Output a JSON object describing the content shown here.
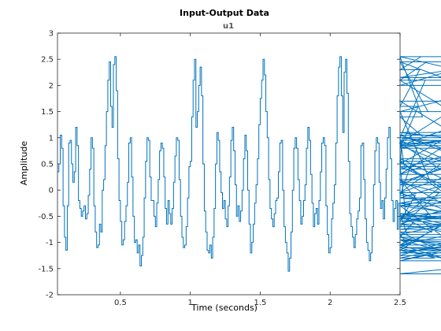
{
  "chart_data": {
    "type": "line",
    "style": "stairs",
    "title": "Input-Output Data",
    "subtitle": "u1",
    "xlabel": "Time (seconds)",
    "ylabel": "Amplitude",
    "xlim": [
      0.05,
      2.5
    ],
    "ylim": [
      -2,
      3
    ],
    "xticks": [
      "0.5",
      "1",
      "1.5",
      "2",
      "2.5"
    ],
    "yticks": [
      "-2",
      "-1.5",
      "-1",
      "-0.5",
      "0",
      "0.5",
      "1",
      "1.5",
      "2",
      "2.5",
      "3"
    ],
    "grid": false,
    "series": [
      {
        "color": "#0072BD",
        "t0": 0.05,
        "dt": 0.01,
        "values": [
          0.35,
          0.5,
          1.05,
          0.8,
          -0.3,
          -0.9,
          -1.15,
          -0.3,
          0.9,
          0.95,
          0.5,
          0.15,
          0.35,
          1.2,
          0.85,
          -0.2,
          -0.35,
          -0.5,
          -0.4,
          -0.3,
          -0.55,
          -0.45,
          -0.1,
          0.4,
          1.0,
          0.8,
          -0.3,
          -0.8,
          -1.1,
          -1.05,
          -0.65,
          -0.8,
          0.0,
          0.2,
          0.85,
          1.5,
          2.1,
          2.45,
          1.6,
          1.2,
          2.4,
          2.55,
          1.9,
          0.6,
          -0.2,
          -0.6,
          -1.05,
          -0.95,
          -0.6,
          -0.3,
          0.15,
          0.9,
          1.0,
          0.25,
          -0.5,
          -1.0,
          -0.95,
          -1.2,
          -1.05,
          -1.45,
          -1.25,
          -0.9,
          -0.15,
          0.55,
          1.0,
          0.95,
          0.25,
          -0.2,
          -0.2,
          -0.5,
          -0.7,
          -0.25,
          0.2,
          0.75,
          0.9,
          0.8,
          0.25,
          -0.35,
          -0.65,
          -0.2,
          -0.45,
          -0.65,
          -0.35,
          0.15,
          0.65,
          1.0,
          0.95,
          0.2,
          -0.5,
          -0.9,
          -1.1,
          -1.05,
          -0.7,
          -0.15,
          0.45,
          0.55,
          1.4,
          2.1,
          2.5,
          1.2,
          1.5,
          2.0,
          2.35,
          1.8,
          0.5,
          -0.4,
          -0.8,
          -1.15,
          -1.2,
          -1.05,
          -1.3,
          -0.9,
          -0.35,
          0.5,
          1.1,
          0.95,
          0.35,
          -0.05,
          -0.35,
          -0.2,
          -0.55,
          -0.7,
          -0.3,
          0.25,
          0.95,
          1.2,
          0.75,
          0.1,
          -0.5,
          -0.3,
          -0.6,
          -0.4,
          0.0,
          0.6,
          1.05,
          0.75,
          0.0,
          -0.65,
          -1.2,
          -1.0,
          -0.65,
          -0.25,
          0.1,
          0.6,
          1.25,
          1.75,
          2.1,
          2.5,
          2.2,
          1.5,
          1.0,
          0.2,
          -0.35,
          -0.55,
          -0.7,
          -0.45,
          -0.2,
          -0.15,
          0.35,
          0.9,
          0.95,
          0.0,
          -0.7,
          -1.0,
          -1.2,
          -1.55,
          -1.3,
          -0.8,
          0.0,
          0.8,
          1.0,
          0.8,
          0.2,
          -0.2,
          -0.65,
          -0.5,
          -0.2,
          0.1,
          0.8,
          1.2,
          0.95,
          0.3,
          -0.25,
          -0.7,
          -0.45,
          -0.35,
          -0.65,
          -0.2,
          0.35,
          0.9,
          1.0,
          0.85,
          -0.3,
          -0.85,
          -1.2,
          -1.1,
          -0.55,
          -0.25,
          0.1,
          0.9,
          1.8,
          2.35,
          2.55,
          1.8,
          1.1,
          2.25,
          2.5,
          1.85,
          0.55,
          -0.45,
          -0.7,
          -0.9,
          -1.1,
          -0.85,
          -0.55,
          -0.4,
          -0.15,
          0.85,
          0.9,
          0.2,
          -0.55,
          -1.0,
          -1.15,
          -1.35,
          -1.2,
          -0.7,
          0.1,
          0.75,
          1.0,
          0.9,
          0.15,
          -0.35,
          -0.2,
          -0.55,
          -0.15,
          0.4,
          1.0,
          1.2,
          0.6,
          -0.2,
          -0.6,
          -0.35,
          -0.2,
          -0.75,
          -0.25,
          0.35,
          0.85,
          1.0,
          0.45,
          -0.45,
          -0.85,
          -1.05,
          -0.95,
          -1.05,
          -0.9,
          -0.6,
          -0.1,
          0.8,
          1.6,
          2.3,
          2.55,
          1.4,
          1.0,
          2.1,
          2.45,
          1.5,
          0.2,
          -0.5,
          -0.8,
          -1.1,
          -1.3,
          -1.15,
          -0.7,
          -0.05,
          0.5,
          0.95,
          0.6,
          0.2,
          -0.3,
          -0.95,
          -1.2,
          -1.05,
          -1.35,
          -1.1,
          -0.55,
          0.3,
          1.0,
          0.9,
          0.15,
          -0.15,
          -0.25,
          -0.5,
          -0.05,
          0.4,
          0.8,
          1.05,
          0.55,
          -0.45,
          -0.6,
          -0.45,
          -0.65,
          -0.15,
          0.3,
          0.85,
          1.05,
          0.55,
          -0.5,
          -0.9,
          -1.25,
          -0.75,
          -0.55,
          -0.25,
          0.1,
          0.85,
          1.5,
          2.0,
          2.55,
          2.1,
          0.9,
          2.15,
          2.45,
          1.7,
          0.45,
          -0.45,
          -0.95,
          -1.05,
          -0.6,
          -0.3,
          0.15,
          0.85,
          1.1,
          0.85,
          -0.05,
          -0.95,
          -1.15,
          -1.6,
          -1.35,
          -0.85,
          -0.3,
          -0.65,
          -1.1,
          -1.2,
          -0.85
        ]
      }
    ]
  }
}
